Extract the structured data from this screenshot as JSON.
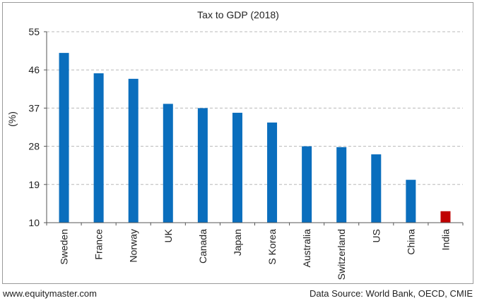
{
  "footer": {
    "website": "www.equitymaster.com",
    "source": "Data Source: World Bank, OECD, CMIE"
  },
  "chart_data": {
    "type": "bar",
    "title": "Tax to GDP (2018)",
    "xlabel": "",
    "ylabel": "(%)",
    "ylim": [
      10,
      55
    ],
    "yticks": [
      10,
      19,
      28,
      37,
      46,
      55
    ],
    "grid": true,
    "categories": [
      "Sweden",
      "France",
      "Norway",
      "UK",
      "Canada",
      "Japan",
      "S Korea",
      "Australia",
      "Switzerland",
      "US",
      "China",
      "India"
    ],
    "values": [
      50.0,
      45.2,
      43.9,
      38.0,
      37.0,
      35.9,
      33.6,
      28.0,
      27.8,
      26.1,
      20.1,
      12.7
    ],
    "colors": {
      "bar": "#0a6ebd",
      "highlight": "#c00000",
      "highlight_category": "India",
      "grid": "#b8b8b8"
    }
  }
}
